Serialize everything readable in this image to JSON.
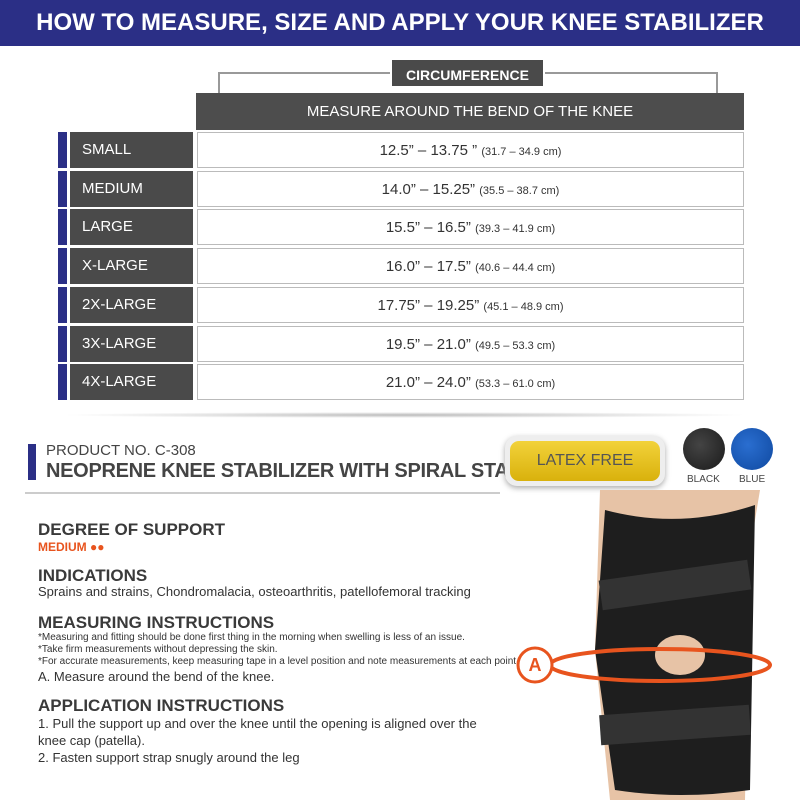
{
  "banner": "HOW TO MEASURE, SIZE AND APPLY YOUR KNEE STABILIZER",
  "table": {
    "group_header": "CIRCUMFERENCE",
    "column_header": "MEASURE AROUND THE BEND OF THE KNEE",
    "rows": [
      {
        "size": "SMALL",
        "inches": "12.5” – 13.75 ”",
        "cm": "(31.7 – 34.9 cm)"
      },
      {
        "size": "MEDIUM",
        "inches": "14.0” – 15.25”",
        "cm": "(35.5 – 38.7 cm)"
      },
      {
        "size": "LARGE",
        "inches": "15.5” – 16.5”",
        "cm": "(39.3 – 41.9 cm)"
      },
      {
        "size": "X-LARGE",
        "inches": "16.0” – 17.5”",
        "cm": "(40.6 – 44.4 cm)"
      },
      {
        "size": "2X-LARGE",
        "inches": "17.75” – 19.25”",
        "cm": "(45.1 – 48.9 cm)"
      },
      {
        "size": "3X-LARGE",
        "inches": "19.5” – 21.0”",
        "cm": "(49.5 – 53.3 cm)"
      },
      {
        "size": "4X-LARGE",
        "inches": "21.0” – 24.0”",
        "cm": "(53.3 – 61.0 cm)"
      }
    ]
  },
  "product": {
    "number": "PRODUCT NO. C-308",
    "name": "NEOPRENE KNEE STABILIZER WITH SPIRAL STAYS",
    "badge": "LATEX FREE",
    "colors": [
      {
        "label": "BLACK",
        "hex": "#2a2a2a"
      },
      {
        "label": "BLUE",
        "hex": "#1a55b0"
      }
    ]
  },
  "support": {
    "title": "DEGREE OF SUPPORT",
    "level": "MEDIUM ●●",
    "accent": "#e8541e"
  },
  "indications": {
    "title": "INDICATIONS",
    "text": "Sprains and strains, Chondromalacia, osteoarthritis, patellofemoral tracking"
  },
  "measuring": {
    "title": "MEASURING INSTRUCTIONS",
    "notes": [
      "*Measuring and fitting should be done first thing in the morning when swelling is less of an issue.",
      "*Take firm measurements without depressing the skin.",
      "*For accurate measurements, keep measuring tape in a level position and note measurements at each point."
    ],
    "step": "A. Measure around the bend of the knee."
  },
  "application": {
    "title": "APPLICATION INSTRUCTIONS",
    "steps": [
      "1. Pull the support up and over the knee until the opening is aligned over the",
      "knee cap (patella).",
      "2. Fasten support strap snugly around the leg"
    ]
  },
  "marker": "A"
}
